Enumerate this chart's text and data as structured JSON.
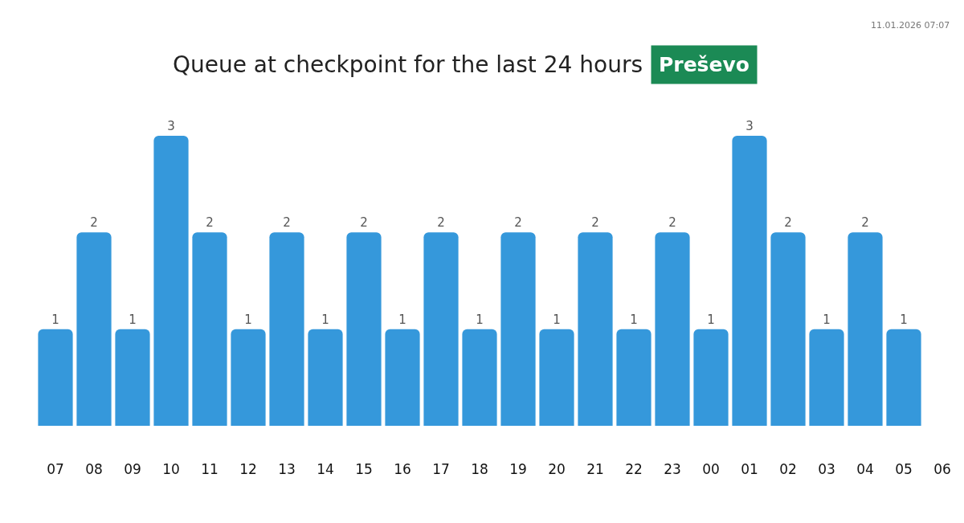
{
  "chart_data": {
    "type": "bar",
    "title": "Queue at checkpoint for the last 24 hours",
    "subtitle": "Preševo",
    "annotations": [
      "11.01.2026 07:07"
    ],
    "categories": [
      "07",
      "08",
      "09",
      "10",
      "11",
      "12",
      "13",
      "14",
      "15",
      "16",
      "17",
      "18",
      "19",
      "20",
      "21",
      "22",
      "23",
      "00",
      "01",
      "02",
      "03",
      "04",
      "05",
      "06"
    ],
    "values": [
      1,
      2,
      1,
      3,
      2,
      1,
      2,
      1,
      2,
      1,
      2,
      1,
      2,
      1,
      2,
      1,
      2,
      1,
      3,
      2,
      1,
      2,
      1,
      null
    ],
    "color": "#3598db",
    "data_labels": true
  }
}
